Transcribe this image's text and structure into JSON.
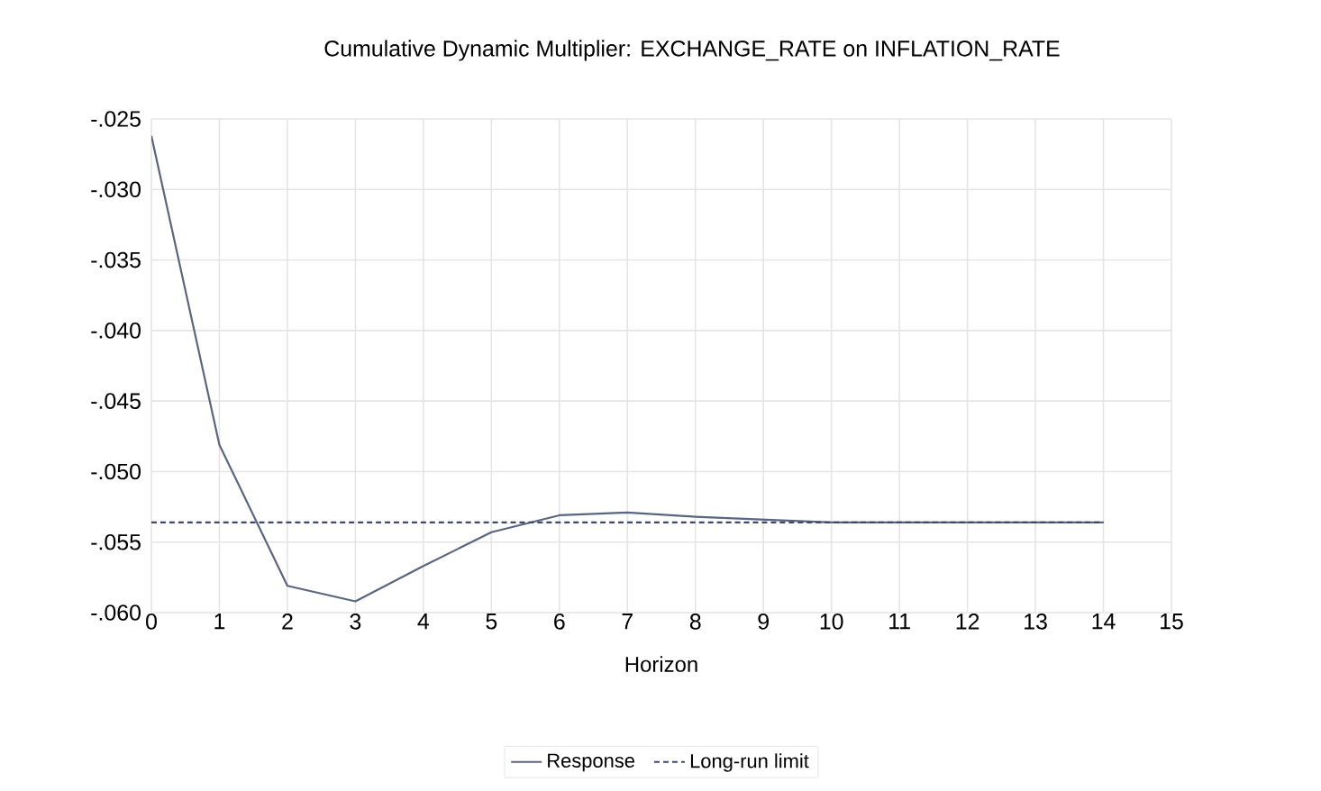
{
  "chart_data": {
    "type": "line",
    "title": "Cumulative Dynamic Multiplier: EXCHANGE_RATE on INFLATION_RATE",
    "xlabel": "Horizon",
    "x": [
      0,
      1,
      2,
      3,
      4,
      5,
      6,
      7,
      8,
      9,
      10,
      11,
      12,
      13,
      14
    ],
    "series": [
      {
        "name": "Response",
        "color": "#5a6580",
        "line_style": "solid",
        "values": [
          -0.0262,
          -0.0481,
          -0.0581,
          -0.0592,
          -0.0567,
          -0.0543,
          -0.0531,
          -0.0529,
          -0.0532,
          -0.0534,
          -0.0536,
          -0.0536,
          -0.0536,
          -0.0536,
          -0.0536
        ]
      },
      {
        "name": "Long-run limit",
        "color": "#3d4a6b",
        "line_style": "dashed",
        "values": [
          -0.0536,
          -0.0536,
          -0.0536,
          -0.0536,
          -0.0536,
          -0.0536,
          -0.0536,
          -0.0536,
          -0.0536,
          -0.0536,
          -0.0536,
          -0.0536,
          -0.0536,
          -0.0536,
          -0.0536
        ]
      }
    ],
    "xlim": [
      0,
      15
    ],
    "xticks": [
      0,
      1,
      2,
      3,
      4,
      5,
      6,
      7,
      8,
      9,
      10,
      11,
      12,
      13,
      14,
      15
    ],
    "ylim": [
      -0.06,
      -0.025
    ],
    "yticks": [
      {
        "value": -0.06,
        "label": "-.060"
      },
      {
        "value": -0.055,
        "label": "-.055"
      },
      {
        "value": -0.05,
        "label": "-.050"
      },
      {
        "value": -0.045,
        "label": "-.045"
      },
      {
        "value": -0.04,
        "label": "-.040"
      },
      {
        "value": -0.035,
        "label": "-.035"
      },
      {
        "value": -0.03,
        "label": "-.030"
      },
      {
        "value": -0.025,
        "label": "-.025"
      }
    ],
    "grid": true,
    "legend": "bottom"
  }
}
